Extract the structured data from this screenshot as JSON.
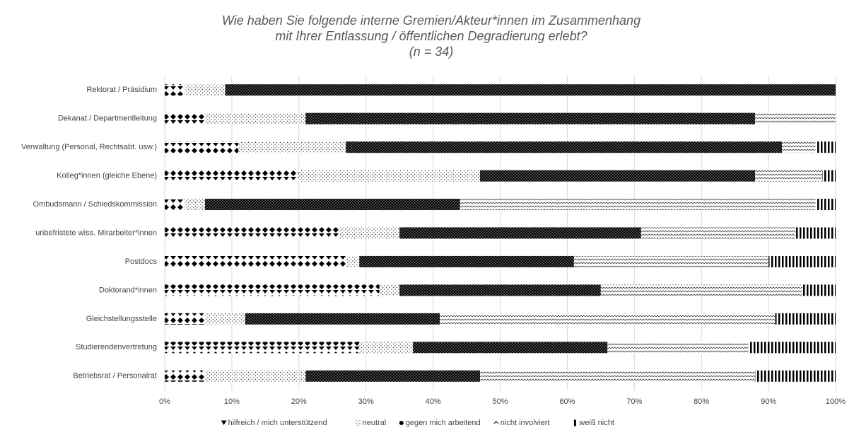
{
  "chart_data": {
    "type": "stacked-barh",
    "title": [
      "Wie haben Sie folgende interne Gremien/Akteur*innen im Zusammenhang",
      "mit Ihrer Entlassung / öffentlichen Degradierung erlebt?",
      "(n = 34)"
    ],
    "categories": [
      "Rektorat / Präsidium",
      "Dekanat / Departmentleitung",
      "Verwaltung (Personal, Rechtsabt. usw.)",
      "Kolleg*innen (gleiche Ebene)",
      "Ombudsmann / Schiedskommission",
      "unbefristete wiss. Mirarbeiter*innen",
      "Postdocs",
      "Doktorand*innen",
      "Gleichstellungsstelle",
      "Studierendenvertretung",
      "Betriebsrat / Personalrat"
    ],
    "series": [
      {
        "name": "hilfreich / mich unterstützend",
        "color": "#000000",
        "values": [
          3,
          6,
          11,
          20,
          3,
          26,
          27,
          32,
          6,
          29,
          6
        ]
      },
      {
        "name": "neutral",
        "color": "#000000",
        "values": [
          6,
          15,
          16,
          27,
          3,
          9,
          2,
          3,
          6,
          8,
          15
        ]
      },
      {
        "name": "gegen mich arbeitend",
        "color": "#000000",
        "values": [
          91,
          67,
          65,
          41,
          38,
          36,
          32,
          30,
          29,
          29,
          26
        ]
      },
      {
        "name": "nicht involviert",
        "color": "#000000",
        "values": [
          0,
          12,
          5,
          10,
          53,
          23,
          29,
          30,
          50,
          21,
          41
        ]
      },
      {
        "name": "weiß nicht",
        "color": "#000000",
        "values": [
          0,
          0,
          3,
          2,
          3,
          6,
          10,
          5,
          9,
          13,
          12
        ]
      }
    ],
    "xlim": [
      0,
      100
    ],
    "xticks": [
      {
        "value": 0,
        "label": "0%"
      },
      {
        "value": 10,
        "label": "10%"
      },
      {
        "value": 20,
        "label": "20%"
      },
      {
        "value": 30,
        "label": "30%"
      },
      {
        "value": 40,
        "label": "40%"
      },
      {
        "value": 50,
        "label": "50%"
      },
      {
        "value": 60,
        "label": "60%"
      },
      {
        "value": 70,
        "label": "70%"
      },
      {
        "value": 80,
        "label": "80%"
      },
      {
        "value": 90,
        "label": "90%"
      },
      {
        "value": 100,
        "label": "100%"
      }
    ],
    "grid": true,
    "legend": "bottom"
  }
}
